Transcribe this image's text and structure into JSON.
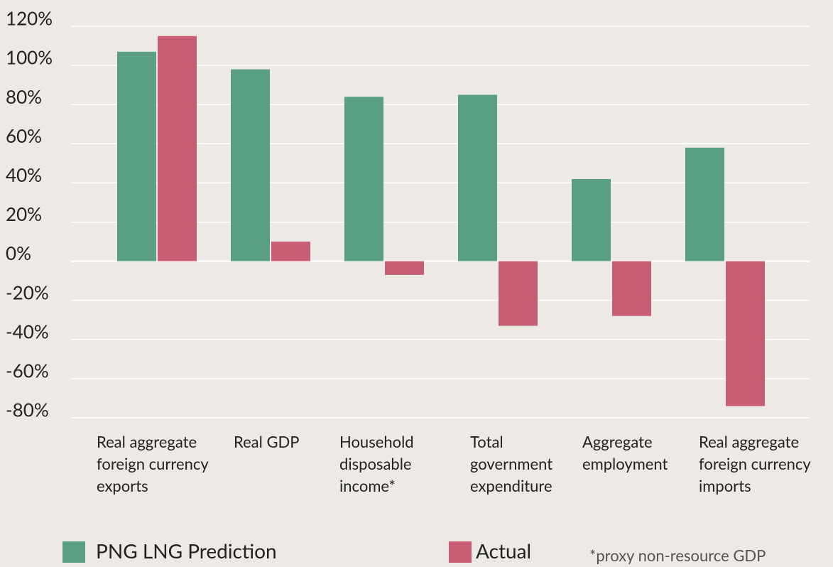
{
  "chart_data": {
    "type": "bar",
    "categories": [
      "Real aggregate foreign currency exports",
      "Real GDP",
      "Household disposable income*",
      "Total government expenditure",
      "Aggregate employment",
      "Real aggregate foreign currency imports"
    ],
    "series": [
      {
        "name": "PNG LNG Prediction",
        "color": "#5a9e84",
        "values": [
          107,
          98,
          84,
          85,
          42,
          58
        ]
      },
      {
        "name": "Actual",
        "color": "#c95d75",
        "values": [
          115,
          10,
          -7,
          -33,
          -28,
          -74
        ]
      }
    ],
    "ylim": [
      -80,
      120
    ],
    "yticks": [
      {
        "value": -80,
        "label": "-80%"
      },
      {
        "value": -60,
        "label": "-60%"
      },
      {
        "value": -40,
        "label": "-40%"
      },
      {
        "value": -20,
        "label": "-20%"
      },
      {
        "value": 0,
        "label": "0%"
      },
      {
        "value": 20,
        "label": "20%"
      },
      {
        "value": 40,
        "label": "40%"
      },
      {
        "value": 60,
        "label": "60%"
      },
      {
        "value": 80,
        "label": "80%"
      },
      {
        "value": 100,
        "label": "100%"
      },
      {
        "value": 120,
        "label": "120%"
      }
    ],
    "grid": true,
    "note": "*proxy non-resource GDP"
  }
}
